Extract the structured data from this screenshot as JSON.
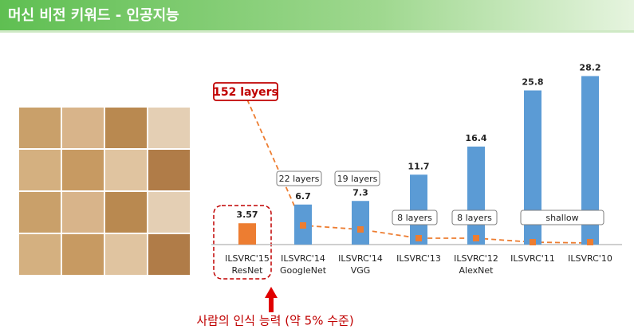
{
  "header": {
    "title": "머신 비전 키워드 - 인공지능"
  },
  "chart_data": {
    "type": "bar",
    "categories": [
      "ILSVRC'15",
      "ILSVRC'14",
      "ILSVRC'14",
      "ILSVRC'13",
      "ILSVRC'12",
      "ILSVRC'11",
      "ILSVRC'10"
    ],
    "sublabels": [
      "ResNet",
      "GoogleNet",
      "VGG",
      null,
      "AlexNet",
      null,
      null
    ],
    "values": [
      3.57,
      6.7,
      7.3,
      11.7,
      16.4,
      25.8,
      28.2
    ],
    "colors": [
      "#ed7d31",
      "#5b9bd5",
      "#5b9bd5",
      "#5b9bd5",
      "#5b9bd5",
      "#5b9bd5",
      "#5b9bd5"
    ],
    "ylim": [
      0,
      30
    ],
    "annotations": [
      "152 layers",
      "22 layers",
      "19 layers",
      "8 layers",
      "8 layers",
      "shallow"
    ],
    "note": "사람의 인식 능력 (약 5% 수준)"
  }
}
